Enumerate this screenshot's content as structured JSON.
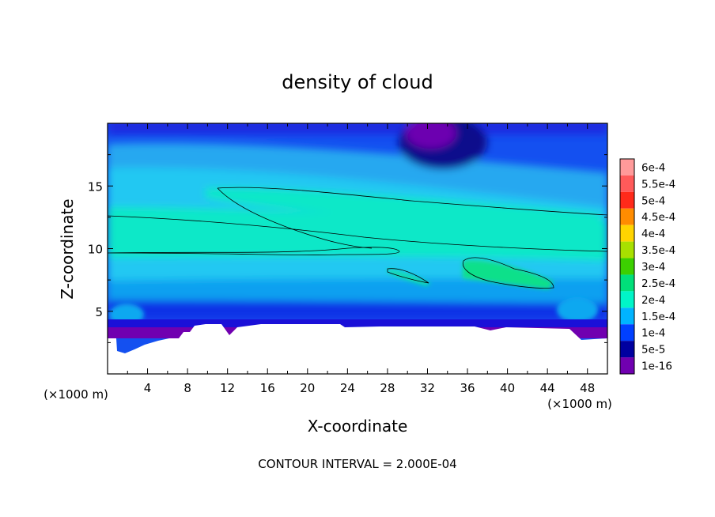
{
  "chart_data": {
    "type": "heatmap",
    "title": "density of cloud",
    "xlabel": "X-coordinate",
    "ylabel": "Z-coordinate",
    "x_unit": "(×1000 m)",
    "y_unit": "(×1000 m)",
    "footer": "CONTOUR INTERVAL = 2.000E-04",
    "xlim": [
      0,
      50
    ],
    "ylim": [
      0,
      20
    ],
    "x_ticks": [
      "4",
      "8",
      "12",
      "16",
      "20",
      "24",
      "28",
      "32",
      "36",
      "40",
      "44",
      "48"
    ],
    "y_ticks": [
      "5",
      "10",
      "15"
    ],
    "colorbar": {
      "labels": [
        "6e-4",
        "5.5e-4",
        "5e-4",
        "4.5e-4",
        "4e-4",
        "3.5e-4",
        "3e-4",
        "2.5e-4",
        "2e-4",
        "1.5e-4",
        "1e-4",
        "5e-5",
        "1e-16"
      ],
      "colors": [
        "#ff9a9a",
        "#ff5a5a",
        "#ff2a1a",
        "#ff8c00",
        "#ffd400",
        "#a8e000",
        "#3cd000",
        "#00e07a",
        "#00f5c8",
        "#00b4ff",
        "#0040ff",
        "#0000a0",
        "#7000b0"
      ]
    }
  }
}
